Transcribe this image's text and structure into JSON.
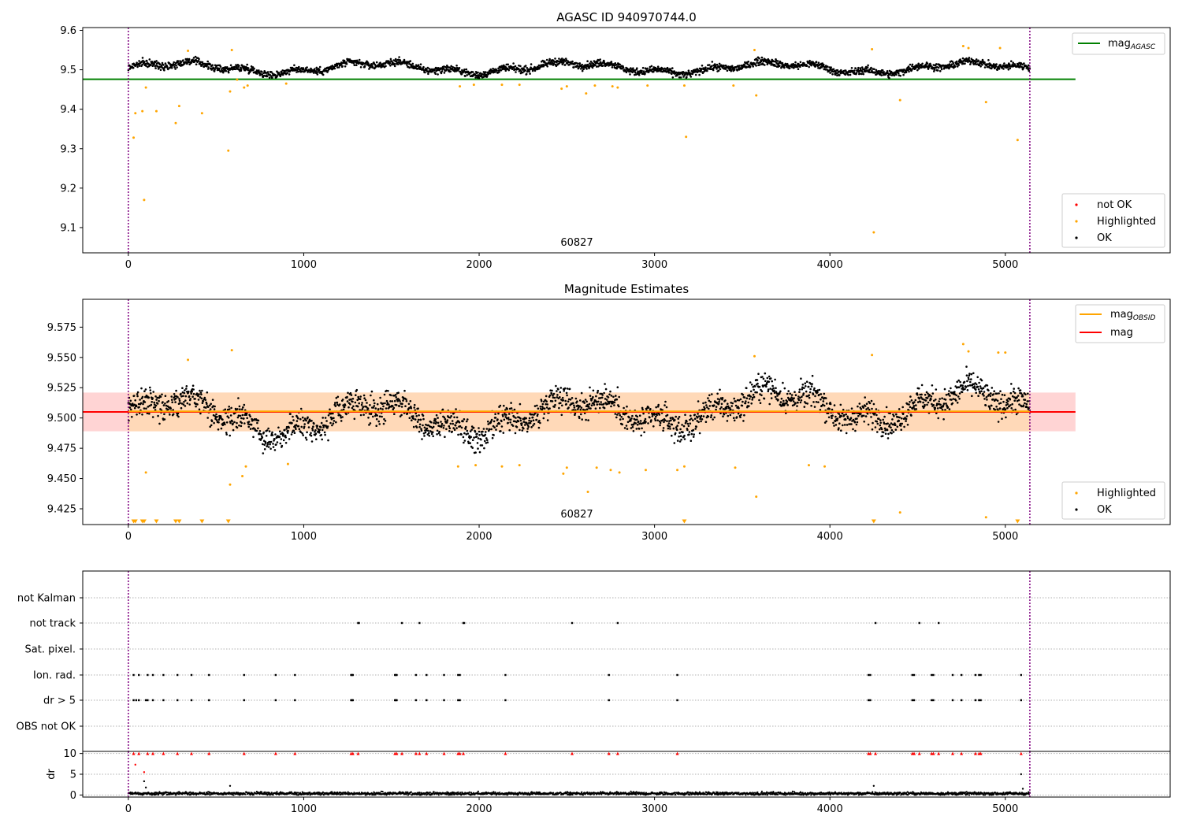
{
  "chart_data": [
    {
      "type": "scatter",
      "title": "AGASC ID 940970744.0",
      "xlabel": "",
      "ylabel": "",
      "xlim": [
        -260,
        5940
      ],
      "ylim": [
        9.036,
        9.607
      ],
      "x_ticks": [
        0,
        1000,
        2000,
        3000,
        4000,
        5000
      ],
      "y_ticks": [
        9.1,
        9.2,
        9.3,
        9.4,
        9.5,
        9.6
      ],
      "vlines": [
        0,
        5140
      ],
      "obsid_label": {
        "text": "60827",
        "x": 2560,
        "y": 9.057
      },
      "reference_line": {
        "name": "mag",
        "subscript": "AGASC",
        "value": 9.476,
        "x_range": [
          -260,
          5400
        ],
        "color": "#008000"
      },
      "legend_top": [
        {
          "label": "mag",
          "subscript": "AGASC",
          "color": "#008000",
          "kind": "line"
        }
      ],
      "legend_bottom": [
        {
          "label": "not OK",
          "color": "#ff0000",
          "kind": "marker"
        },
        {
          "label": "Highlighted",
          "color": "#ffa500",
          "kind": "marker"
        },
        {
          "label": "OK",
          "color": "#000000",
          "kind": "marker"
        }
      ],
      "series": [
        {
          "name": "OK",
          "color": "#000000",
          "dense_band": {
            "x_range": [
              0,
              5140
            ],
            "center": 9.505,
            "spread": 0.02
          }
        },
        {
          "name": "Highlighted",
          "color": "#ffa500",
          "points": [
            [
              30,
              9.328
            ],
            [
              40,
              9.39
            ],
            [
              80,
              9.395
            ],
            [
              90,
              9.17
            ],
            [
              100,
              9.455
            ],
            [
              160,
              9.395
            ],
            [
              270,
              9.365
            ],
            [
              290,
              9.408
            ],
            [
              420,
              9.39
            ],
            [
              340,
              9.548
            ],
            [
              570,
              9.295
            ],
            [
              580,
              9.445
            ],
            [
              590,
              9.55
            ],
            [
              620,
              9.475
            ],
            [
              660,
              9.455
            ],
            [
              680,
              9.46
            ],
            [
              900,
              9.465
            ],
            [
              1890,
              9.458
            ],
            [
              1970,
              9.462
            ],
            [
              2130,
              9.462
            ],
            [
              2230,
              9.462
            ],
            [
              2470,
              9.452
            ],
            [
              2500,
              9.458
            ],
            [
              2610,
              9.44
            ],
            [
              2660,
              9.46
            ],
            [
              2760,
              9.458
            ],
            [
              2790,
              9.455
            ],
            [
              2960,
              9.46
            ],
            [
              3170,
              9.46
            ],
            [
              3180,
              9.33
            ],
            [
              3450,
              9.46
            ],
            [
              3570,
              9.55
            ],
            [
              3580,
              9.435
            ],
            [
              4240,
              9.552
            ],
            [
              4250,
              9.088
            ],
            [
              4400,
              9.423
            ],
            [
              4760,
              9.56
            ],
            [
              4790,
              9.555
            ],
            [
              4890,
              9.418
            ],
            [
              4970,
              9.555
            ],
            [
              5070,
              9.322
            ]
          ]
        }
      ]
    },
    {
      "type": "scatter",
      "title": "Magnitude Estimates",
      "xlabel": "",
      "ylabel": "",
      "xlim": [
        -260,
        5940
      ],
      "ylim": [
        9.412,
        9.598
      ],
      "x_ticks": [
        0,
        1000,
        2000,
        3000,
        4000,
        5000
      ],
      "y_ticks": [
        9.425,
        9.45,
        9.475,
        9.5,
        9.525,
        9.55,
        9.575
      ],
      "vlines": [
        0,
        5140
      ],
      "obsid_label": {
        "text": "60827",
        "x": 2560,
        "y": 9.42
      },
      "reference_line": {
        "name": "mag",
        "value": 9.505,
        "x_range": [
          -260,
          5400
        ],
        "color": "#ff0000"
      },
      "obsid_line": {
        "name": "mag",
        "subscript": "OBSID",
        "value": 9.5055,
        "x_range": [
          0,
          5140
        ],
        "color": "#ffa500"
      },
      "bands": [
        {
          "y_range": [
            9.489,
            9.521
          ],
          "x_range": [
            -260,
            5400
          ],
          "color": "#ffcccc"
        },
        {
          "y_range": [
            9.489,
            9.521
          ],
          "x_range": [
            0,
            5140
          ],
          "color": "#ffd9b3"
        }
      ],
      "legend_top": [
        {
          "label": "mag",
          "subscript": "OBSID",
          "color": "#ffa500",
          "kind": "line"
        },
        {
          "label": "mag",
          "color": "#ff0000",
          "kind": "line"
        }
      ],
      "legend_bottom": [
        {
          "label": "Highlighted",
          "color": "#ffa500",
          "kind": "marker"
        },
        {
          "label": "OK",
          "color": "#000000",
          "kind": "marker"
        }
      ],
      "series": [
        {
          "name": "OK",
          "color": "#000000",
          "dense_band": {
            "x_range": [
              0,
              5140
            ],
            "center": 9.505,
            "spread": 0.02
          }
        },
        {
          "name": "Highlighted",
          "color": "#ffa500",
          "points": [
            [
              100,
              9.455
            ],
            [
              340,
              9.548
            ],
            [
              580,
              9.445
            ],
            [
              590,
              9.556
            ],
            [
              650,
              9.452
            ],
            [
              670,
              9.46
            ],
            [
              910,
              9.462
            ],
            [
              1880,
              9.46
            ],
            [
              1980,
              9.461
            ],
            [
              2130,
              9.46
            ],
            [
              2230,
              9.461
            ],
            [
              2480,
              9.454
            ],
            [
              2500,
              9.459
            ],
            [
              2620,
              9.439
            ],
            [
              2670,
              9.459
            ],
            [
              2750,
              9.457
            ],
            [
              2800,
              9.455
            ],
            [
              2950,
              9.457
            ],
            [
              3130,
              9.457
            ],
            [
              3170,
              9.46
            ],
            [
              3460,
              9.459
            ],
            [
              3570,
              9.551
            ],
            [
              3580,
              9.435
            ],
            [
              3880,
              9.461
            ],
            [
              3970,
              9.46
            ],
            [
              4240,
              9.552
            ],
            [
              4400,
              9.422
            ],
            [
              4760,
              9.561
            ],
            [
              4790,
              9.555
            ],
            [
              4890,
              9.418
            ],
            [
              4960,
              9.554
            ],
            [
              5000,
              9.554
            ]
          ]
        },
        {
          "name": "Highlighted",
          "marker": "triangle-down",
          "color": "#ffa500",
          "at_lower_edge": true,
          "x": [
            30,
            40,
            80,
            90,
            160,
            270,
            290,
            420,
            570,
            3170,
            4250,
            5070
          ]
        }
      ]
    },
    {
      "type": "scatter",
      "title": "",
      "xlim": [
        -260,
        5940
      ],
      "x_ticks": [
        0,
        1000,
        2000,
        3000,
        4000,
        5000
      ],
      "vlines": [
        0,
        5140
      ],
      "flag_rows": [
        "not Kalman",
        "not track",
        "Sat. pixel.",
        "Ion. rad.",
        "dr > 5",
        "OBS not OK"
      ],
      "flags": {
        "not Kalman": [],
        "not track": [
          1310,
          1315,
          1560,
          1660,
          1910,
          1915,
          2530,
          2790,
          4260,
          4510,
          4620
        ],
        "Sat. pixel.": [],
        "Ion. rad.": [
          30,
          60,
          110,
          140,
          200,
          280,
          360,
          460,
          660,
          840,
          950,
          1270,
          1275,
          1280,
          1520,
          1525,
          1530,
          1640,
          1700,
          1800,
          1880,
          1890,
          2150,
          2740,
          3130,
          4220,
          4230,
          4470,
          4480,
          4580,
          4590,
          4700,
          4750,
          4830,
          4850,
          4860,
          5090
        ],
        "dr > 5": [
          30,
          45,
          60,
          100,
          110,
          140,
          200,
          280,
          360,
          460,
          660,
          840,
          950,
          1270,
          1275,
          1280,
          1520,
          1525,
          1530,
          1640,
          1700,
          1800,
          1880,
          1890,
          2150,
          2740,
          3130,
          4220,
          4230,
          4470,
          4480,
          4580,
          4590,
          4700,
          4750,
          4830,
          4850,
          4860,
          5090
        ],
        "OBS not OK": []
      },
      "dr_panel": {
        "ylabel": "dr",
        "y_ticks": [
          0,
          5,
          10
        ],
        "ylim": [
          -0.5,
          10.5
        ],
        "clip_value": 10,
        "dense_baseline": {
          "x_range": [
            0,
            5140
          ],
          "center": 0.35,
          "spread": 0.35
        },
        "extra_points": [
          [
            40,
            7.3
          ],
          [
            90,
            5.5
          ],
          [
            90,
            3.3
          ],
          [
            100,
            1.8
          ],
          [
            580,
            2.2
          ],
          [
            5090,
            5.0
          ],
          [
            5100,
            1.5
          ],
          [
            4250,
            2.2
          ]
        ],
        "clipped_red": [
          30,
          60,
          110,
          140,
          200,
          280,
          360,
          460,
          660,
          840,
          950,
          1270,
          1280,
          1310,
          1520,
          1530,
          1560,
          1640,
          1660,
          1700,
          1800,
          1880,
          1890,
          1910,
          2150,
          2530,
          2740,
          2790,
          3130,
          4220,
          4230,
          4260,
          4470,
          4480,
          4510,
          4580,
          4590,
          4620,
          4700,
          4750,
          4830,
          4850,
          4860,
          5090
        ]
      }
    }
  ]
}
